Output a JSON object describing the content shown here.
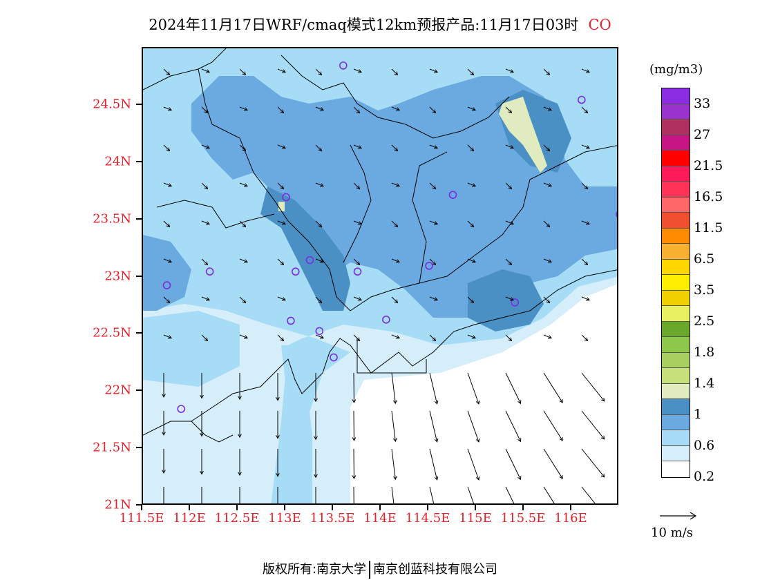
{
  "title": "2024年11月17日WRF/cmaq模式12km预报产品:11月17日03时",
  "species": "CO",
  "lat_ticks": [
    "24.5N",
    "24N",
    "23.5N",
    "23N",
    "22.5N",
    "22N",
    "21.5N",
    "21N"
  ],
  "lon_ticks": [
    "111.5E",
    "112E",
    "112.5E",
    "113E",
    "113.5E",
    "114E",
    "114.5E",
    "115E",
    "115.5E",
    "116E"
  ],
  "legend": {
    "unit": "(mg/m3)",
    "labels": [
      "33",
      "27",
      "21.5",
      "16.5",
      "11.5",
      "6.5",
      "3.5",
      "2.5",
      "1.8",
      "1.4",
      "1",
      "0.6",
      "0.2"
    ],
    "colors": [
      "#8b2be2",
      "#9a32cd",
      "#b03060",
      "#c71585",
      "#ff0000",
      "#ff1a5a",
      "#ff3355",
      "#ff6666",
      "#f05030",
      "#ff8c00",
      "#f8b030",
      "#ffd700",
      "#ffee00",
      "#f0d000",
      "#e8f060",
      "#6aa82c",
      "#8dc84a",
      "#a8d060",
      "#c6e07a",
      "#e0ecc0",
      "#4a90c4",
      "#6aaae0",
      "#a6dcf5",
      "#d6eefa",
      "#ffffff"
    ]
  },
  "wind_reference": {
    "label": "10 m/s"
  },
  "footer": {
    "left": "版权所有:南京大学",
    "right": "南京创蓝科技有限公司"
  },
  "map": {
    "lon_range": [
      111.5,
      116.5
    ],
    "lat_range": [
      21.0,
      25.0
    ],
    "stations": [
      {
        "lon": 113.6,
        "lat": 24.85
      },
      {
        "lon": 116.1,
        "lat": 24.55
      },
      {
        "lon": 113.0,
        "lat": 23.7
      },
      {
        "lon": 114.75,
        "lat": 23.72
      },
      {
        "lon": 116.5,
        "lat": 23.55
      },
      {
        "lon": 113.25,
        "lat": 23.15
      },
      {
        "lon": 112.2,
        "lat": 23.05
      },
      {
        "lon": 113.1,
        "lat": 23.05
      },
      {
        "lon": 113.75,
        "lat": 23.05
      },
      {
        "lon": 114.5,
        "lat": 23.1
      },
      {
        "lon": 111.75,
        "lat": 22.93
      },
      {
        "lon": 115.4,
        "lat": 22.78
      },
      {
        "lon": 113.05,
        "lat": 22.62
      },
      {
        "lon": 113.35,
        "lat": 22.53
      },
      {
        "lon": 114.05,
        "lat": 22.63
      },
      {
        "lon": 113.5,
        "lat": 22.3
      },
      {
        "lon": 111.9,
        "lat": 21.85
      }
    ]
  }
}
